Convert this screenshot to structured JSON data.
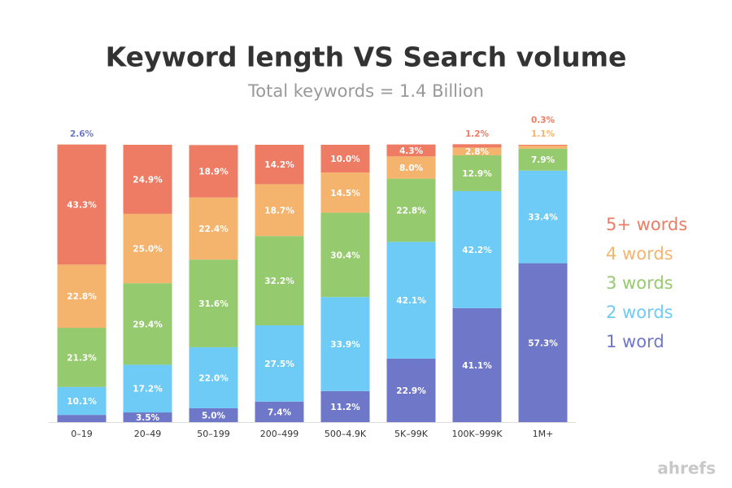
{
  "chart_data": {
    "type": "stacked_bar",
    "title": "Keyword length VS Search volume",
    "subtitle": "Total keywords = 1.4 Billion",
    "categories": [
      "0–19",
      "20–49",
      "50–199",
      "200–499",
      "500–4.9K",
      "5K–99K",
      "100K–999K",
      "1M+"
    ],
    "ylim": [
      0,
      100
    ],
    "series": [
      {
        "name": "1 word",
        "color": "#6f78c8",
        "values": [
          2.6,
          3.5,
          5.0,
          7.4,
          11.2,
          22.9,
          41.1,
          57.3
        ],
        "value_labels": [
          "2.6%",
          "3.5%",
          "5.0%",
          "7.4%",
          "11.2%",
          "22.9%",
          "41.1%",
          "57.3%"
        ]
      },
      {
        "name": "2 words",
        "color": "#6ecbf5",
        "values": [
          10.1,
          17.2,
          22.0,
          27.5,
          33.9,
          42.1,
          42.2,
          33.4
        ],
        "value_labels": [
          "10.1%",
          "17.2%",
          "22.0%",
          "27.5%",
          "33.9%",
          "42.1%",
          "42.2%",
          "33.4%"
        ]
      },
      {
        "name": "3 words",
        "color": "#96ca6e",
        "values": [
          21.3,
          29.4,
          31.6,
          32.2,
          30.4,
          22.8,
          12.9,
          7.9
        ],
        "value_labels": [
          "21.3%",
          "29.4%",
          "31.6%",
          "32.2%",
          "30.4%",
          "22.8%",
          "12.9%",
          "7.9%"
        ]
      },
      {
        "name": "4 words",
        "color": "#f5b46e",
        "values": [
          22.8,
          25.0,
          22.4,
          18.7,
          14.5,
          8.0,
          2.8,
          1.1
        ],
        "value_labels": [
          "22.8%",
          "25.0%",
          "22.4%",
          "18.7%",
          "14.5%",
          "8.0%",
          "2.8%",
          "1.1%"
        ]
      },
      {
        "name": "5+ words",
        "color": "#ee7b63",
        "values": [
          43.3,
          24.9,
          18.9,
          14.2,
          10.0,
          4.3,
          1.2,
          0.3
        ],
        "value_labels": [
          "43.3%",
          "24.9%",
          "18.9%",
          "14.2%",
          "10.0%",
          "4.3%",
          "1.2%",
          "0.3%"
        ]
      }
    ]
  },
  "brand": "ahrefs"
}
